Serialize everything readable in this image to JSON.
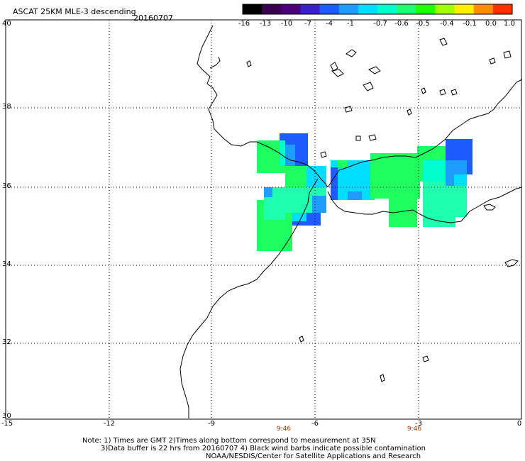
{
  "header": {
    "title": "ASCAT 25KM MLE-3 descending",
    "date": "20160707"
  },
  "colorbar": {
    "labels": [
      "-16",
      "-13",
      "-10",
      "-7",
      "-4",
      "-1",
      "-0.7",
      "-0.6",
      "-0.5",
      "-0.4",
      "-0.1",
      "0.0",
      "1.0"
    ],
    "colors": [
      "#000000",
      "#3a0050",
      "#4a007a",
      "#3a20c8",
      "#1e5cff",
      "#1e9cff",
      "#00ddff",
      "#00ffcc",
      "#20ff70",
      "#20ff00",
      "#a0ff00",
      "#ffee00",
      "#ff8c00",
      "#ff3000"
    ]
  },
  "axes": {
    "lat_labels": [
      "40",
      "38",
      "36",
      "34",
      "32",
      "30"
    ],
    "lon_labels": [
      "-15",
      "-12",
      "-9",
      "-6",
      "-3",
      "0"
    ],
    "lat_range": [
      30,
      40
    ],
    "lon_range": [
      -15,
      0
    ],
    "grid": "dotted"
  },
  "pass_times": [
    "9:46",
    "9:46"
  ],
  "notes": {
    "line1": "Note: 1) Times are GMT 2)Times along bottom correspond to measurement at 35N",
    "line2": "3)Data buffer is 22 hrs from 20160707 4) Black wind barbs indicate possible contamination",
    "line3": "NOAA/NESDIS/Center for Satellite Applications and Research"
  }
}
